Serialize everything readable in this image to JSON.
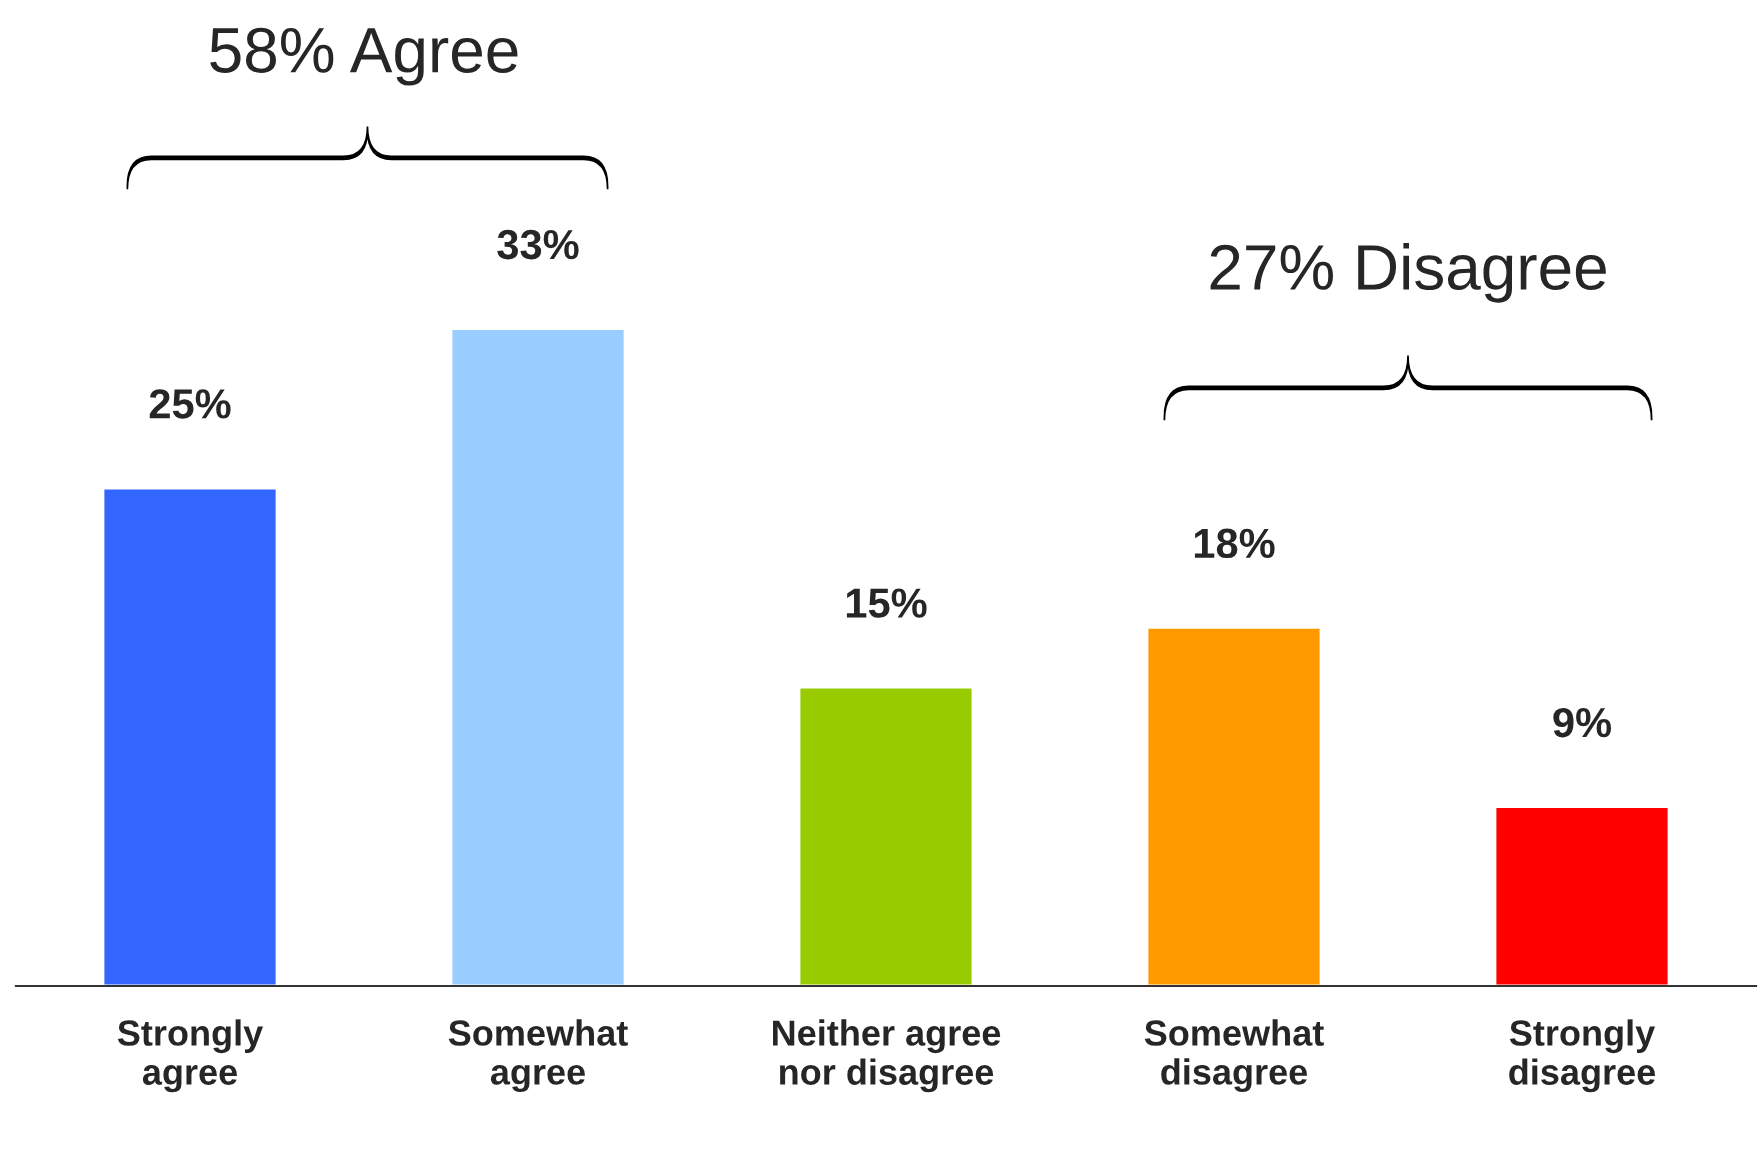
{
  "chart_data": {
    "type": "bar",
    "categories": [
      "Strongly\nagree",
      "Somewhat\nagree",
      "Neither agree\nnor disagree",
      "Somewhat\ndisagree",
      "Strongly\ndisagree"
    ],
    "values": [
      25,
      33,
      15,
      18,
      9
    ],
    "colors": [
      "#3366ff",
      "#99ccff",
      "#99cc00",
      "#ff9900",
      "#ff0000"
    ],
    "value_labels": [
      "25%",
      "33%",
      "15%",
      "18%",
      "9%"
    ],
    "annotations": [
      "58% Agree",
      "27% Disagree"
    ],
    "grid": false,
    "legend": false
  }
}
